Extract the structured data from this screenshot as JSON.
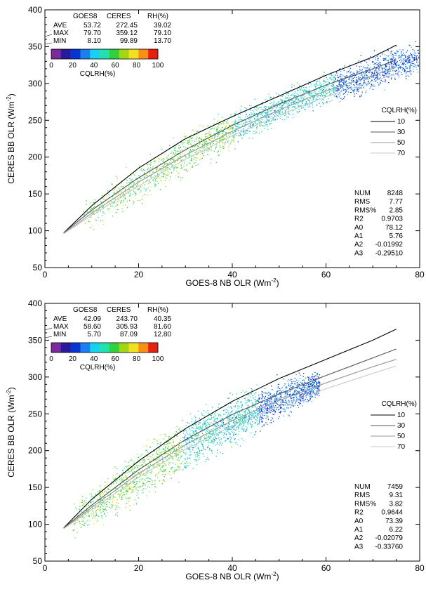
{
  "chart_data": [
    {
      "type": "scatter",
      "xlabel": "GOES-8 NB OLR (Wm",
      "xlabel_sup": "-2",
      "xlabel_end": ")",
      "ylabel": "CERES BB OLR (Wm",
      "ylabel_sup": "-2",
      "ylabel_end": ")",
      "xlim": [
        0,
        80
      ],
      "ylim": [
        50,
        400
      ],
      "x_ticks": [
        0,
        20,
        40,
        60,
        80
      ],
      "y_ticks": [
        50,
        100,
        150,
        200,
        250,
        300,
        350,
        400
      ],
      "grid": false,
      "stats_table": {
        "headers": [
          "",
          "GOES8",
          "CERES",
          "RH(%)"
        ],
        "rows": [
          {
            "label": "AVE",
            "values": [
              "53.72",
              "272.45",
              "39.02"
            ]
          },
          {
            "label": "MAX",
            "values": [
              "79.70",
              "359.12",
              "79.10"
            ]
          },
          {
            "label": "MIN",
            "values": [
              "8.10",
              "99.89",
              "13.70"
            ]
          }
        ]
      },
      "colorbar": {
        "label": "CQLRH(%)",
        "ticks": [
          "0",
          "20",
          "40",
          "60",
          "80",
          "100"
        ],
        "colors": [
          "#7a2a9a",
          "#2a1a9a",
          "#0a34d0",
          "#1c7ef0",
          "#18d0f0",
          "#22e0b0",
          "#30d040",
          "#a0d818",
          "#f0e020",
          "#f89018",
          "#e82010"
        ]
      },
      "legend": {
        "title": "CQLRH(%)",
        "position": "right",
        "entries": [
          {
            "label": "10",
            "color": "#000000"
          },
          {
            "label": "30",
            "color": "#555555"
          },
          {
            "label": "50",
            "color": "#999999"
          },
          {
            "label": "70",
            "color": "#c8c8c8"
          }
        ]
      },
      "fit_stats": [
        {
          "name": "NUM",
          "value": "8248"
        },
        {
          "name": "RMS",
          "value": "7.77"
        },
        {
          "name": "RMS%",
          "value": "2.85"
        },
        {
          "name": "R2",
          "value": "0.9703"
        },
        {
          "name": "A0",
          "value": "78.12"
        },
        {
          "name": "A1",
          "value": "5.76"
        },
        {
          "name": "A2",
          "value": "-0.01992"
        },
        {
          "name": "A3",
          "value": "-0.29510"
        }
      ],
      "series": [
        {
          "name": "10",
          "color": "#000000",
          "x": [
            4,
            10,
            20,
            30,
            40,
            50,
            60,
            70,
            75
          ],
          "y": [
            97,
            134,
            185,
            225,
            255,
            283,
            311,
            336,
            352
          ]
        },
        {
          "name": "30",
          "color": "#555555",
          "x": [
            4,
            10,
            20,
            30,
            40,
            50,
            60,
            70,
            75
          ],
          "y": [
            97,
            128,
            172,
            210,
            243,
            272,
            298,
            320,
            332
          ]
        },
        {
          "name": "50",
          "color": "#999999",
          "x": [
            4,
            10,
            20,
            30,
            40,
            50,
            60,
            70,
            75
          ],
          "y": [
            96,
            124,
            166,
            203,
            235,
            264,
            290,
            311,
            322
          ]
        },
        {
          "name": "70",
          "color": "#c8c8c8",
          "x": [
            4,
            10,
            20,
            30,
            40,
            50,
            60,
            70,
            75
          ],
          "y": [
            96,
            121,
            161,
            197,
            229,
            257,
            282,
            303,
            313
          ]
        }
      ],
      "scatter_cloud": {
        "x_range": [
          8.1,
          79.7
        ],
        "band_center_x": [
          8,
          20,
          30,
          40,
          50,
          60,
          70,
          79
        ],
        "band_center_y": [
          120,
          165,
          205,
          238,
          268,
          293,
          315,
          335
        ],
        "band_width_y": [
          14,
          18,
          18,
          16,
          14,
          14,
          16,
          14
        ]
      }
    },
    {
      "type": "scatter",
      "xlabel": "GOES-8 NB OLR (Wm",
      "xlabel_sup": "-2",
      "xlabel_end": ")",
      "ylabel": "CERES BB OLR (Wm",
      "ylabel_sup": "-2",
      "ylabel_end": ")",
      "xlim": [
        0,
        80
      ],
      "ylim": [
        50,
        400
      ],
      "x_ticks": [
        0,
        20,
        40,
        60,
        80
      ],
      "y_ticks": [
        50,
        100,
        150,
        200,
        250,
        300,
        350,
        400
      ],
      "grid": false,
      "stats_table": {
        "headers": [
          "",
          "GOES8",
          "CERES",
          "RH(%)"
        ],
        "rows": [
          {
            "label": "AVE",
            "values": [
              "42.09",
              "243.70",
              "40.35"
            ]
          },
          {
            "label": "MAX",
            "values": [
              "58.60",
              "305.93",
              "81.60"
            ]
          },
          {
            "label": "MIN",
            "values": [
              "5.70",
              "87.09",
              "12.80"
            ]
          }
        ]
      },
      "colorbar": {
        "label": "CQLRH(%)",
        "ticks": [
          "0",
          "20",
          "40",
          "60",
          "80",
          "100"
        ],
        "colors": [
          "#7a2a9a",
          "#2a1a9a",
          "#0a34d0",
          "#1c7ef0",
          "#18d0f0",
          "#22e0b0",
          "#30d040",
          "#a0d818",
          "#f0e020",
          "#f89018",
          "#e82010"
        ]
      },
      "legend": {
        "title": "CQLRH(%)",
        "position": "right",
        "entries": [
          {
            "label": "10",
            "color": "#000000"
          },
          {
            "label": "30",
            "color": "#555555"
          },
          {
            "label": "50",
            "color": "#999999"
          },
          {
            "label": "70",
            "color": "#c8c8c8"
          }
        ]
      },
      "fit_stats": [
        {
          "name": "NUM",
          "value": "7459"
        },
        {
          "name": "RMS",
          "value": "9.31"
        },
        {
          "name": "RMS%",
          "value": "3.82"
        },
        {
          "name": "R2",
          "value": "0.9644"
        },
        {
          "name": "A0",
          "value": "73.39"
        },
        {
          "name": "A1",
          "value": "6.22"
        },
        {
          "name": "A2",
          "value": "-0.02079"
        },
        {
          "name": "A3",
          "value": "-0.33760"
        }
      ],
      "series": [
        {
          "name": "10",
          "color": "#000000",
          "x": [
            4,
            10,
            20,
            30,
            40,
            50,
            60,
            70,
            75
          ],
          "y": [
            95,
            134,
            186,
            230,
            267,
            298,
            324,
            350,
            365
          ]
        },
        {
          "name": "30",
          "color": "#555555",
          "x": [
            4,
            10,
            20,
            30,
            40,
            50,
            60,
            70,
            75
          ],
          "y": [
            95,
            126,
            174,
            215,
            249,
            277,
            302,
            326,
            338
          ]
        },
        {
          "name": "50",
          "color": "#999999",
          "x": [
            4,
            10,
            20,
            30,
            40,
            50,
            60,
            70,
            75
          ],
          "y": [
            94,
            123,
            169,
            208,
            241,
            268,
            292,
            314,
            324
          ]
        },
        {
          "name": "70",
          "color": "#c8c8c8",
          "x": [
            4,
            10,
            20,
            30,
            40,
            50,
            60,
            70,
            75
          ],
          "y": [
            94,
            120,
            164,
            202,
            234,
            260,
            284,
            305,
            315
          ]
        }
      ],
      "scatter_cloud": {
        "x_range": [
          5.7,
          58.6
        ],
        "band_center_x": [
          6,
          15,
          25,
          35,
          45,
          52,
          58
        ],
        "band_center_y": [
          105,
          145,
          190,
          225,
          255,
          275,
          290
        ],
        "band_width_y": [
          14,
          22,
          24,
          22,
          20,
          16,
          12
        ]
      }
    }
  ]
}
